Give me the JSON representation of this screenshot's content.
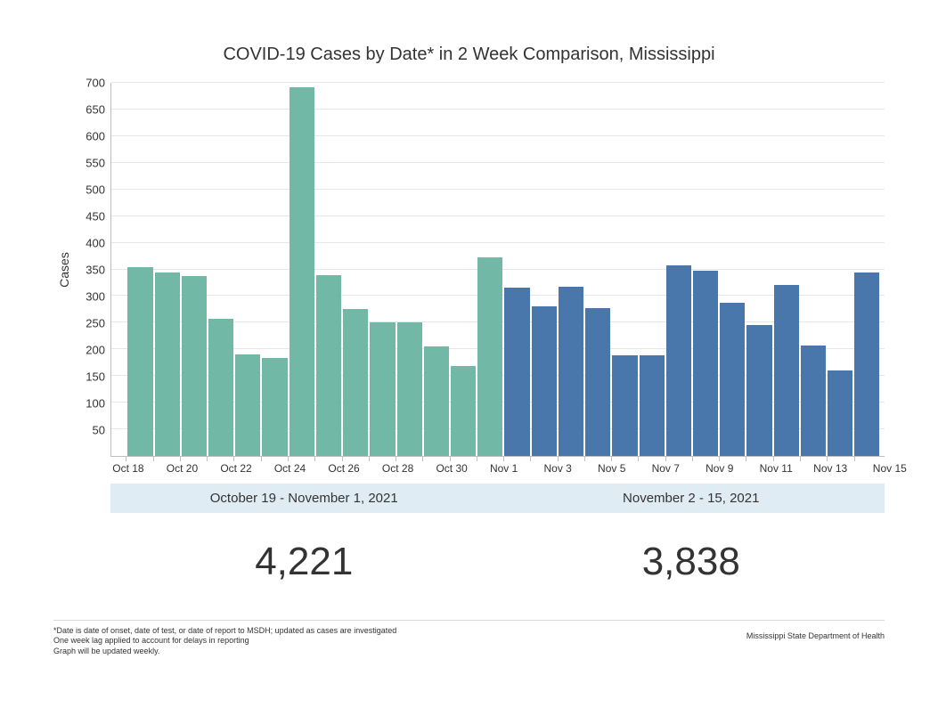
{
  "title": "COVID-19 Cases by Date* in 2 Week Comparison, Mississippi",
  "ylabel": "Cases",
  "yaxis": {
    "min": 0,
    "max": 700,
    "step": 50,
    "grid_color": "#e6e6e6",
    "axis_color": "#bfbfbf"
  },
  "xaxis": {
    "label_every": 2,
    "label_start": "Oct 18"
  },
  "series": [
    {
      "date": "Oct 19",
      "value": 355,
      "group": 0
    },
    {
      "date": "Oct 20",
      "value": 345,
      "group": 0
    },
    {
      "date": "Oct 21",
      "value": 338,
      "group": 0
    },
    {
      "date": "Oct 22",
      "value": 258,
      "group": 0
    },
    {
      "date": "Oct 23",
      "value": 190,
      "group": 0
    },
    {
      "date": "Oct 24",
      "value": 183,
      "group": 0
    },
    {
      "date": "Oct 25",
      "value": 692,
      "group": 0
    },
    {
      "date": "Oct 26",
      "value": 340,
      "group": 0
    },
    {
      "date": "Oct 27",
      "value": 275,
      "group": 0
    },
    {
      "date": "Oct 28",
      "value": 250,
      "group": 0
    },
    {
      "date": "Oct 29",
      "value": 250,
      "group": 0
    },
    {
      "date": "Oct 30",
      "value": 205,
      "group": 0
    },
    {
      "date": "Oct 31",
      "value": 168,
      "group": 0
    },
    {
      "date": "Nov 1",
      "value": 372,
      "group": 0
    },
    {
      "date": "Nov 2",
      "value": 315,
      "group": 1
    },
    {
      "date": "Nov 3",
      "value": 280,
      "group": 1
    },
    {
      "date": "Nov 4",
      "value": 318,
      "group": 1
    },
    {
      "date": "Nov 5",
      "value": 278,
      "group": 1
    },
    {
      "date": "Nov 6",
      "value": 188,
      "group": 1
    },
    {
      "date": "Nov 7",
      "value": 188,
      "group": 1
    },
    {
      "date": "Nov 8",
      "value": 358,
      "group": 1
    },
    {
      "date": "Nov 9",
      "value": 348,
      "group": 1
    },
    {
      "date": "Nov 10",
      "value": 288,
      "group": 1
    },
    {
      "date": "Nov 11",
      "value": 245,
      "group": 1
    },
    {
      "date": "Nov 12",
      "value": 320,
      "group": 1
    },
    {
      "date": "Nov 13",
      "value": 208,
      "group": 1
    },
    {
      "date": "Nov 14",
      "value": 160,
      "group": 1
    },
    {
      "date": "Nov 15",
      "value": 344,
      "group": 1
    }
  ],
  "groups": [
    {
      "label": "October 19 - November 1, 2021",
      "total": "4,221",
      "bar_color": "#72b8a7",
      "period_bg": "#e0ecf3"
    },
    {
      "label": "November 2 - 15, 2021",
      "total": "3,838",
      "bar_color": "#4a77ab",
      "period_bg": "#e0ecf3"
    }
  ],
  "footnotes": [
    "*Date is date of onset, date of test, or date of report to MSDH; updated as cases are investigated",
    "One week lag applied to account for delays in reporting",
    "Graph will be updated weekly."
  ],
  "source": "Mississippi State Department of Health",
  "background_color": "#ffffff"
}
